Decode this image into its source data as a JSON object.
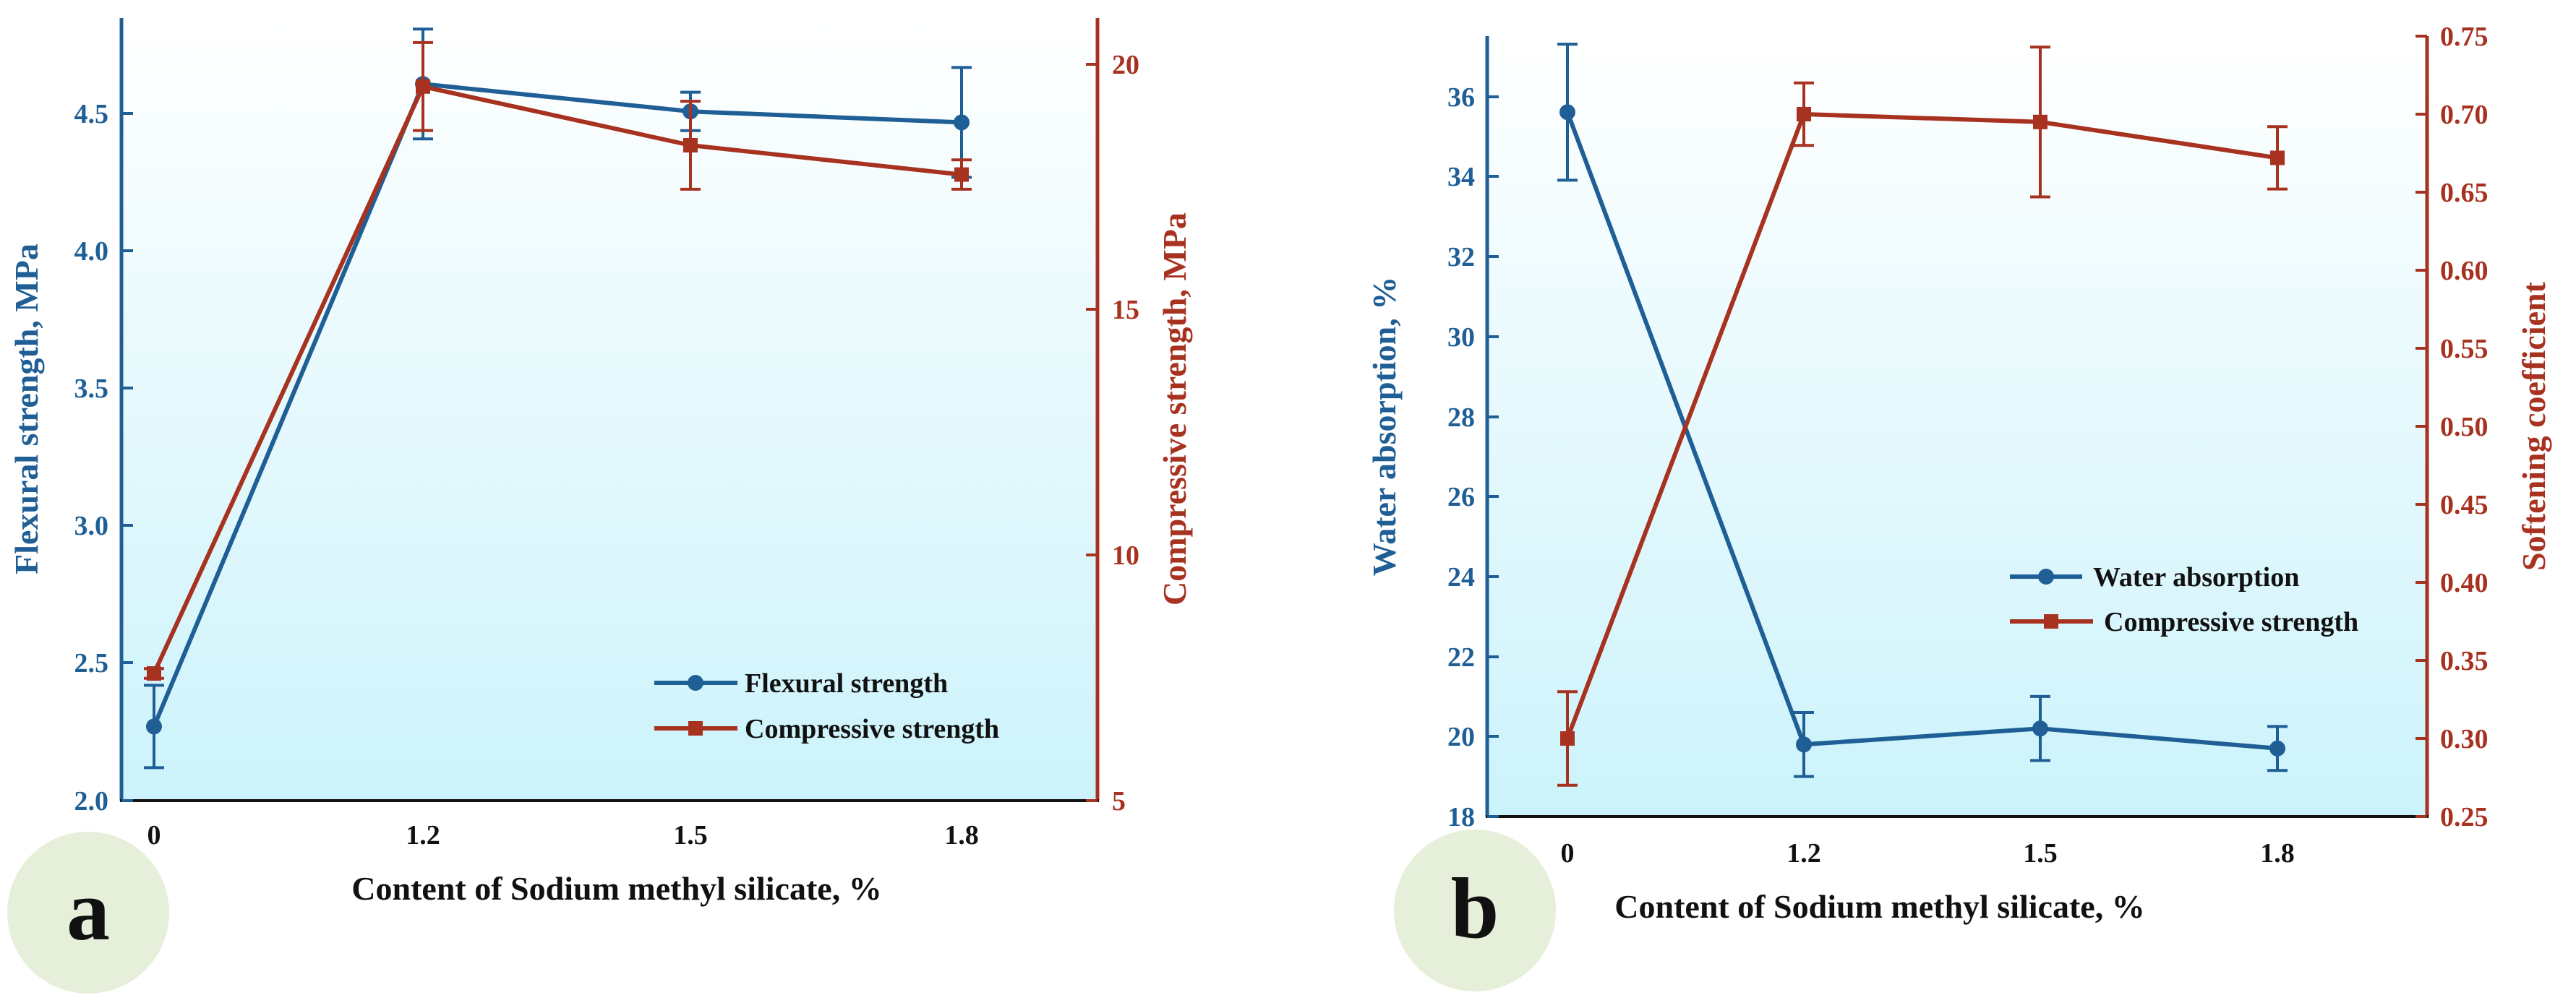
{
  "colors": {
    "blue": "#1f5f96",
    "red": "#a83220",
    "bg_top": "#ffffff",
    "bg_bottom": "#ccf3fb",
    "badge": "#e6efd9"
  },
  "chart_data": [
    {
      "panel_label": "a",
      "type": "line",
      "xlabel": "Content of Sodium methyl silicate, %",
      "categories": [
        "0",
        "1.2",
        "1.5",
        "1.8"
      ],
      "ylabel": "Flexural strength, MPa",
      "ylim": [
        2.0,
        4.85
      ],
      "yticks": [
        "2.0",
        "2.5",
        "3.0",
        "3.5",
        "4.0",
        "4.5"
      ],
      "y2label": "Compressive strength, MPa",
      "y2lim": [
        5,
        21
      ],
      "y2ticks": [
        "5",
        "10",
        "15",
        "20"
      ],
      "series": [
        {
          "name": "Flexural strength",
          "axis": "left",
          "marker": "circle",
          "color": "#1f5f96",
          "values": [
            2.27,
            4.61,
            4.51,
            4.47
          ],
          "errors": [
            0.15,
            0.2,
            0.07,
            0.2
          ]
        },
        {
          "name": "Compressive strength",
          "axis": "right",
          "marker": "square",
          "color": "#a83220",
          "values": [
            7.6,
            19.6,
            18.4,
            17.8
          ],
          "errors": [
            0.1,
            0.9,
            0.9,
            0.3
          ]
        }
      ],
      "legend": [
        "Flexural strength",
        "Compressive strength"
      ],
      "legend_position": "bottom-right"
    },
    {
      "panel_label": "b",
      "type": "line",
      "xlabel": "Content of Sodium methyl silicate, %",
      "categories": [
        "0",
        "1.2",
        "1.5",
        "1.8"
      ],
      "ylabel": "Water absorption, %",
      "ylim": [
        18,
        37.5
      ],
      "yticks": [
        "18",
        "20",
        "22",
        "24",
        "26",
        "28",
        "30",
        "32",
        "34",
        "36"
      ],
      "y2label": "Softening coefficient",
      "y2lim": [
        0.25,
        0.75
      ],
      "y2ticks": [
        "0.25",
        "0.30",
        "0.35",
        "0.40",
        "0.45",
        "0.50",
        "0.55",
        "0.60",
        "0.65",
        "0.70",
        "0.75"
      ],
      "series": [
        {
          "name": "Water absorption",
          "axis": "left",
          "marker": "circle",
          "color": "#1f5f96",
          "values": [
            35.6,
            19.8,
            20.2,
            19.7
          ],
          "errors": [
            1.7,
            0.8,
            0.8,
            0.55
          ]
        },
        {
          "name": "Compressive strength",
          "axis": "right",
          "marker": "square",
          "color": "#a83220",
          "values": [
            0.3,
            0.7,
            0.695,
            0.672
          ],
          "errors": [
            0.03,
            0.02,
            0.048,
            0.02
          ]
        }
      ],
      "legend": [
        "Water absorption",
        "Compressive strength"
      ],
      "legend_position": "center-right"
    }
  ]
}
